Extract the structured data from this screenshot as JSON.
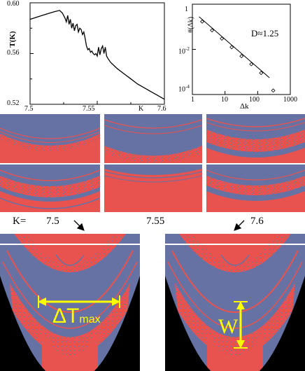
{
  "colors": {
    "red": "#e8524f",
    "blue": "#6672a4",
    "black": "#000000",
    "yellow": "#ffff00",
    "divider": "#ffffff"
  },
  "chart_data": [
    {
      "type": "line",
      "xlabel": "K",
      "ylabel": "T(K)",
      "xlim": [
        7.5,
        7.6
      ],
      "ylim": [
        0.52,
        0.6
      ],
      "xticks": [
        "7.5",
        "7.55",
        "7.6"
      ],
      "yticks": [
        "0.52",
        "0.56",
        "0.60"
      ],
      "x": [
        7.5,
        7.506,
        7.512,
        7.518,
        7.522,
        7.524,
        7.526,
        7.527,
        7.528,
        7.529,
        7.53,
        7.531,
        7.532,
        7.533,
        7.534,
        7.535,
        7.536,
        7.537,
        7.538,
        7.539,
        7.54,
        7.541,
        7.542,
        7.543,
        7.544,
        7.545,
        7.546,
        7.547,
        7.548,
        7.549,
        7.55,
        7.551,
        7.552,
        7.553,
        7.554,
        7.555,
        7.556,
        7.557,
        7.558,
        7.56,
        7.565,
        7.57,
        7.575,
        7.58,
        7.585,
        7.59,
        7.595,
        7.6
      ],
      "y": [
        0.587,
        0.589,
        0.591,
        0.593,
        0.594,
        0.592,
        0.588,
        0.585,
        0.59,
        0.583,
        0.587,
        0.58,
        0.584,
        0.578,
        0.582,
        0.583,
        0.577,
        0.58,
        0.579,
        0.575,
        0.577,
        0.572,
        0.566,
        0.563,
        0.564,
        0.561,
        0.562,
        0.56,
        0.559,
        0.56,
        0.558,
        0.565,
        0.559,
        0.564,
        0.566,
        0.56,
        0.565,
        0.558,
        0.556,
        0.553,
        0.548,
        0.544,
        0.54,
        0.536,
        0.533,
        0.53,
        0.527,
        0.524
      ]
    },
    {
      "type": "scatter",
      "xlabel": "Δk",
      "ylabel": "#(Δk)",
      "xscale": "log",
      "yscale": "log",
      "xlim": [
        1,
        1000
      ],
      "ylim": [
        0.0001,
        1
      ],
      "xticks": [
        "1",
        "10",
        "100",
        "1000"
      ],
      "yticks": [
        "1",
        "10-2",
        "10-4"
      ],
      "annotation": "D≈1.25",
      "points": [
        {
          "x": 2,
          "y": 0.17
        },
        {
          "x": 4,
          "y": 0.07
        },
        {
          "x": 8,
          "y": 0.03
        },
        {
          "x": 16,
          "y": 0.0125
        },
        {
          "x": 32,
          "y": 0.005
        },
        {
          "x": 64,
          "y": 0.0022
        },
        {
          "x": 128,
          "y": 0.0009
        },
        {
          "x": 300,
          "y": 0.00015
        }
      ],
      "fit": {
        "x": [
          1.6,
          230
        ],
        "y": [
          0.28,
          0.00055
        ]
      }
    }
  ],
  "labels": {
    "k_prefix": "K=",
    "k_left": "7.5",
    "k_mid": "7.55",
    "k_right": "7.6",
    "delta_t": "ΔT",
    "delta_t_sub": "max",
    "w": "W"
  }
}
